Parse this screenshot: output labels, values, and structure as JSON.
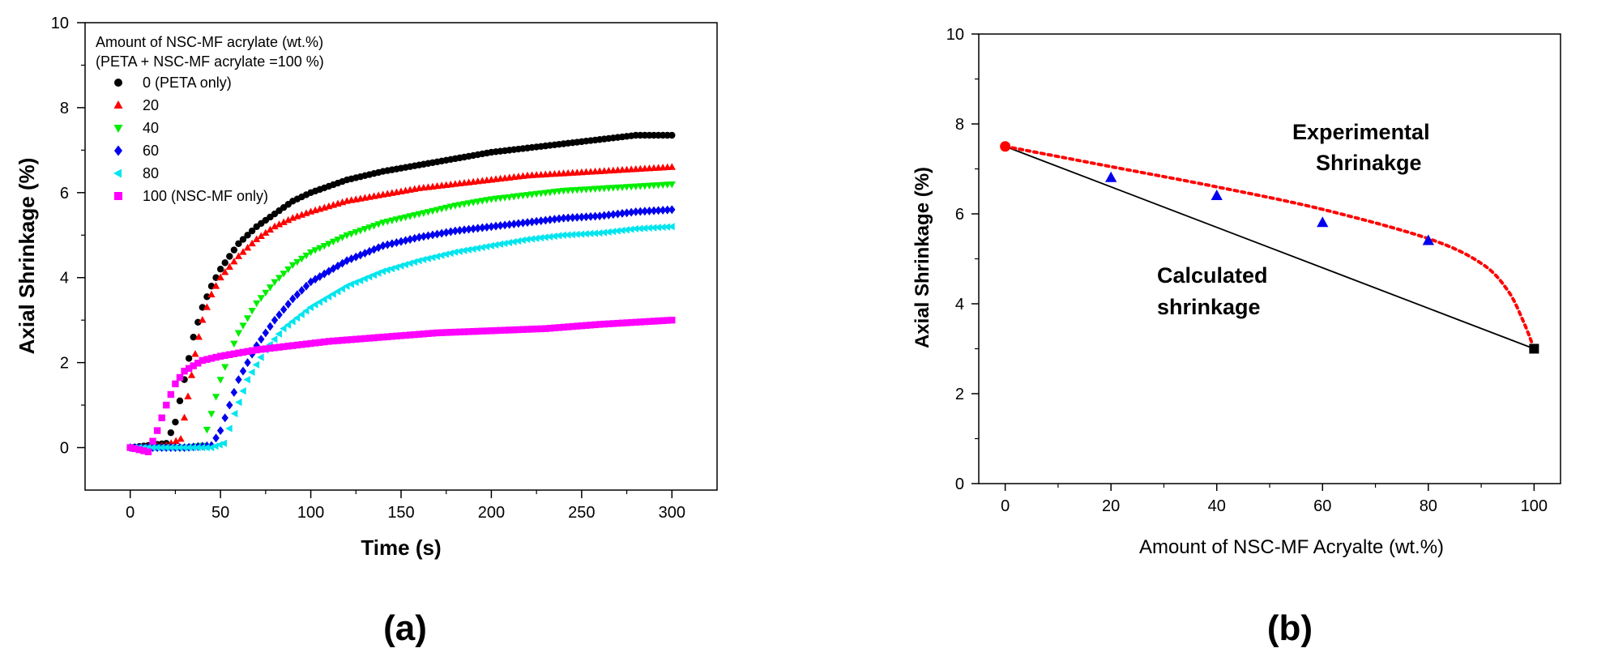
{
  "chart_data": [
    {
      "type": "scatter",
      "panel_label": "(a)",
      "xlabel": "Time (s)",
      "ylabel": "Axial Shrinkage (%)",
      "xlim": [
        -25,
        325
      ],
      "ylim": [
        -1,
        10
      ],
      "xticks": [
        0,
        50,
        100,
        150,
        200,
        250,
        300
      ],
      "yticks": [
        0,
        2,
        4,
        6,
        8,
        10
      ],
      "legend": {
        "title_line1": "Amount of NSC-MF acrylate (wt.%)",
        "title_line2": "(PETA + NSC-MF acrylate =100 %)",
        "placement": "top-left"
      },
      "series": [
        {
          "name": "0 (PETA only)",
          "color": "#000000",
          "marker": "circle",
          "points": [
            [
              0,
              0
            ],
            [
              10,
              0.05
            ],
            [
              20,
              0.1
            ],
            [
              25,
              0.6
            ],
            [
              30,
              1.6
            ],
            [
              35,
              2.6
            ],
            [
              40,
              3.3
            ],
            [
              45,
              3.8
            ],
            [
              50,
              4.2
            ],
            [
              60,
              4.8
            ],
            [
              70,
              5.2
            ],
            [
              80,
              5.5
            ],
            [
              90,
              5.8
            ],
            [
              100,
              6.0
            ],
            [
              120,
              6.3
            ],
            [
              140,
              6.5
            ],
            [
              160,
              6.65
            ],
            [
              180,
              6.8
            ],
            [
              200,
              6.95
            ],
            [
              220,
              7.05
            ],
            [
              240,
              7.15
            ],
            [
              260,
              7.25
            ],
            [
              280,
              7.35
            ],
            [
              300,
              7.35
            ]
          ]
        },
        {
          "name": "20",
          "color": "#ff0000",
          "marker": "triangle-up",
          "points": [
            [
              0,
              0
            ],
            [
              10,
              0.02
            ],
            [
              20,
              0.05
            ],
            [
              28,
              0.2
            ],
            [
              32,
              1.2
            ],
            [
              36,
              2.2
            ],
            [
              40,
              3.0
            ],
            [
              45,
              3.6
            ],
            [
              50,
              4.0
            ],
            [
              60,
              4.5
            ],
            [
              70,
              4.9
            ],
            [
              80,
              5.2
            ],
            [
              90,
              5.4
            ],
            [
              100,
              5.55
            ],
            [
              120,
              5.8
            ],
            [
              140,
              5.95
            ],
            [
              160,
              6.1
            ],
            [
              180,
              6.2
            ],
            [
              200,
              6.3
            ],
            [
              220,
              6.4
            ],
            [
              240,
              6.45
            ],
            [
              260,
              6.5
            ],
            [
              280,
              6.55
            ],
            [
              300,
              6.6
            ]
          ]
        },
        {
          "name": "40",
          "color": "#00ee00",
          "marker": "triangle-down",
          "points": [
            [
              0,
              0
            ],
            [
              15,
              0
            ],
            [
              30,
              0
            ],
            [
              40,
              0.05
            ],
            [
              45,
              0.8
            ],
            [
              50,
              1.6
            ],
            [
              55,
              2.2
            ],
            [
              60,
              2.7
            ],
            [
              70,
              3.4
            ],
            [
              80,
              3.9
            ],
            [
              90,
              4.3
            ],
            [
              100,
              4.6
            ],
            [
              120,
              5.0
            ],
            [
              140,
              5.3
            ],
            [
              160,
              5.5
            ],
            [
              180,
              5.7
            ],
            [
              200,
              5.85
            ],
            [
              220,
              5.95
            ],
            [
              240,
              6.05
            ],
            [
              260,
              6.1
            ],
            [
              280,
              6.15
            ],
            [
              300,
              6.2
            ]
          ]
        },
        {
          "name": "60",
          "color": "#0000ee",
          "marker": "diamond",
          "points": [
            [
              0,
              0
            ],
            [
              15,
              0
            ],
            [
              30,
              0
            ],
            [
              45,
              0.05
            ],
            [
              50,
              0.4
            ],
            [
              55,
              1.0
            ],
            [
              60,
              1.6
            ],
            [
              70,
              2.4
            ],
            [
              80,
              3.0
            ],
            [
              90,
              3.5
            ],
            [
              100,
              3.9
            ],
            [
              120,
              4.4
            ],
            [
              140,
              4.75
            ],
            [
              160,
              4.95
            ],
            [
              180,
              5.1
            ],
            [
              200,
              5.2
            ],
            [
              220,
              5.3
            ],
            [
              240,
              5.4
            ],
            [
              260,
              5.45
            ],
            [
              280,
              5.55
            ],
            [
              300,
              5.6
            ]
          ]
        },
        {
          "name": "80",
          "color": "#00e5ee",
          "marker": "triangle-left",
          "points": [
            [
              0,
              0
            ],
            [
              15,
              0
            ],
            [
              30,
              0
            ],
            [
              45,
              0
            ],
            [
              52,
              0.1
            ],
            [
              58,
              0.8
            ],
            [
              65,
              1.6
            ],
            [
              75,
              2.3
            ],
            [
              85,
              2.8
            ],
            [
              100,
              3.3
            ],
            [
              120,
              3.8
            ],
            [
              140,
              4.15
            ],
            [
              160,
              4.4
            ],
            [
              180,
              4.6
            ],
            [
              200,
              4.75
            ],
            [
              220,
              4.9
            ],
            [
              240,
              5.0
            ],
            [
              260,
              5.05
            ],
            [
              280,
              5.15
            ],
            [
              300,
              5.2
            ]
          ]
        },
        {
          "name": "100 (NSC-MF only)",
          "color": "#ff00ff",
          "marker": "square",
          "points": [
            [
              0,
              0
            ],
            [
              10,
              -0.1
            ],
            [
              15,
              0.4
            ],
            [
              20,
              1.0
            ],
            [
              25,
              1.5
            ],
            [
              30,
              1.8
            ],
            [
              40,
              2.05
            ],
            [
              50,
              2.15
            ],
            [
              70,
              2.3
            ],
            [
              90,
              2.4
            ],
            [
              110,
              2.5
            ],
            [
              140,
              2.6
            ],
            [
              170,
              2.7
            ],
            [
              200,
              2.75
            ],
            [
              230,
              2.8
            ],
            [
              260,
              2.9
            ],
            [
              300,
              3.0
            ]
          ]
        }
      ]
    },
    {
      "type": "scatter",
      "panel_label": "(b)",
      "xlabel": "Amount of NSC-MF Acryalte (wt.%)",
      "ylabel": "Axial Shrinkage (%)",
      "xlim": [
        -5,
        105
      ],
      "ylim": [
        0,
        10
      ],
      "xticks": [
        0,
        20,
        40,
        60,
        80,
        100
      ],
      "yticks": [
        0,
        2,
        4,
        6,
        8,
        10
      ],
      "annotations": [
        {
          "text_line1": "Experimental",
          "text_line2": "Shrinakge"
        },
        {
          "text_line1": "Calculated",
          "text_line2": "shrinkage"
        }
      ],
      "experimental_points": [
        [
          20,
          6.8
        ],
        [
          40,
          6.4
        ],
        [
          60,
          5.8
        ],
        [
          80,
          5.4
        ]
      ],
      "endpoint_start": [
        0,
        7.5
      ],
      "endpoint_end": [
        100,
        3.0
      ],
      "calculated_line": [
        [
          0,
          7.5
        ],
        [
          100,
          3.0
        ]
      ],
      "experimental_curve": [
        [
          0,
          7.5
        ],
        [
          20,
          7.05
        ],
        [
          40,
          6.6
        ],
        [
          60,
          6.1
        ],
        [
          80,
          5.45
        ],
        [
          90,
          4.9
        ],
        [
          95,
          4.3
        ],
        [
          98,
          3.6
        ],
        [
          100,
          3.0
        ]
      ],
      "colors": {
        "points": "#0000ee",
        "start": "#ff0000",
        "end": "#000000",
        "curve": "#ff0000",
        "line": "#000000"
      }
    }
  ]
}
